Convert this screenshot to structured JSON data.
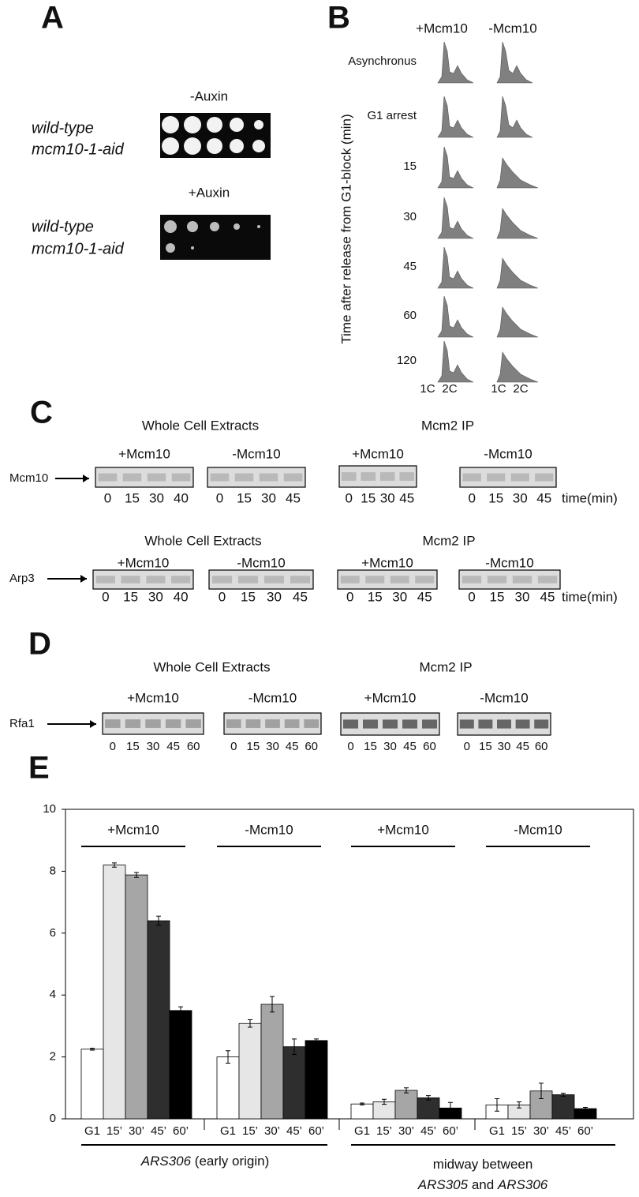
{
  "panel_a": {
    "label": "A",
    "plates": [
      {
        "condition": "-Auxin",
        "strains": [
          "wild-type",
          "mcm10-1-aid"
        ]
      },
      {
        "condition": "+Auxin",
        "strains": [
          "wild-type",
          "mcm10-1-aid"
        ]
      }
    ]
  },
  "panel_b": {
    "label": "B",
    "columns": [
      "+Mcm10",
      "-Mcm10"
    ],
    "rows": [
      "Asynchronus",
      "G1 arrest",
      15,
      30,
      45,
      60,
      120
    ],
    "axis_label": "Time after release from G1-block (min)",
    "dna_content": [
      "1C",
      "2C"
    ]
  },
  "panel_c": {
    "label": "C",
    "time_label": "time(min)",
    "rows": [
      {
        "protein": "Mcm10",
        "blocks": [
          {
            "title": "Whole Cell Extracts",
            "groups": [
              {
                "name": "+Mcm10",
                "lanes": [
                  0,
                  15,
                  30,
                  40
                ]
              },
              {
                "name": "-Mcm10",
                "lanes": [
                  0,
                  15,
                  30,
                  45
                ]
              }
            ]
          },
          {
            "title": "Mcm2 IP",
            "groups": [
              {
                "name": "+Mcm10",
                "lanes": [
                  0,
                  15,
                  30,
                  45
                ]
              },
              {
                "name": "-Mcm10",
                "lanes": [
                  0,
                  15,
                  30,
                  45
                ]
              }
            ]
          }
        ]
      },
      {
        "protein": "Arp3",
        "blocks": [
          {
            "title": "Whole Cell Extracts",
            "groups": [
              {
                "name": "+Mcm10",
                "lanes": [
                  0,
                  15,
                  30,
                  40
                ]
              },
              {
                "name": "-Mcm10",
                "lanes": [
                  0,
                  15,
                  30,
                  45
                ]
              }
            ]
          },
          {
            "title": "Mcm2 IP",
            "groups": [
              {
                "name": "+Mcm10",
                "lanes": [
                  0,
                  15,
                  30,
                  45
                ]
              },
              {
                "name": "-Mcm10",
                "lanes": [
                  0,
                  15,
                  30,
                  45
                ]
              }
            ]
          }
        ]
      }
    ]
  },
  "panel_d": {
    "label": "D",
    "rows": [
      {
        "protein": "Rfa1",
        "blocks": [
          {
            "title": "Whole Cell Extracts",
            "groups": [
              {
                "name": "+Mcm10",
                "lanes": [
                  0,
                  15,
                  30,
                  45,
                  60
                ]
              },
              {
                "name": "-Mcm10",
                "lanes": [
                  0,
                  15,
                  30,
                  45,
                  60
                ]
              }
            ]
          },
          {
            "title": "Mcm2 IP",
            "groups": [
              {
                "name": "+Mcm10",
                "lanes": [
                  0,
                  15,
                  30,
                  45,
                  60
                ]
              },
              {
                "name": "-Mcm10",
                "lanes": [
                  0,
                  15,
                  30,
                  45,
                  60
                ]
              }
            ]
          }
        ]
      }
    ]
  },
  "panel_e": {
    "label": "E",
    "origins": [
      {
        "lines": [
          [
            "ARS306",
            " (early origin)"
          ]
        ]
      },
      {
        "lines": [
          [
            "midway between"
          ],
          [
            "ARS305",
            " and ",
            "ARS306"
          ]
        ]
      }
    ]
  },
  "chart_data": {
    "type": "bar",
    "ylim": [
      0,
      10
    ],
    "yticks": [
      0,
      2,
      4,
      6,
      8,
      10
    ],
    "categories": [
      "G1",
      "15’",
      "30’",
      "45’",
      "60’"
    ],
    "category_colors": [
      "#ffffff",
      "#e6e6e6",
      "#a6a6a6",
      "#2e2e2e",
      "#000000"
    ],
    "series": [
      {
        "name": "+Mcm10",
        "values": [
          2.25,
          8.2,
          7.88,
          6.4,
          3.5
        ],
        "errors": [
          0.03,
          0.07,
          0.08,
          0.15,
          0.12
        ]
      },
      {
        "name": "-Mcm10",
        "values": [
          2.0,
          3.08,
          3.7,
          2.33,
          2.53
        ],
        "errors": [
          0.2,
          0.12,
          0.25,
          0.25,
          0.05
        ]
      },
      {
        "name": "+Mcm10",
        "values": [
          0.48,
          0.55,
          0.92,
          0.68,
          0.35
        ],
        "errors": [
          0.03,
          0.08,
          0.08,
          0.07,
          0.18
        ]
      },
      {
        "name": "-Mcm10",
        "values": [
          0.45,
          0.45,
          0.9,
          0.78,
          0.33
        ],
        "errors": [
          0.2,
          0.1,
          0.25,
          0.05,
          0.04
        ]
      }
    ]
  }
}
